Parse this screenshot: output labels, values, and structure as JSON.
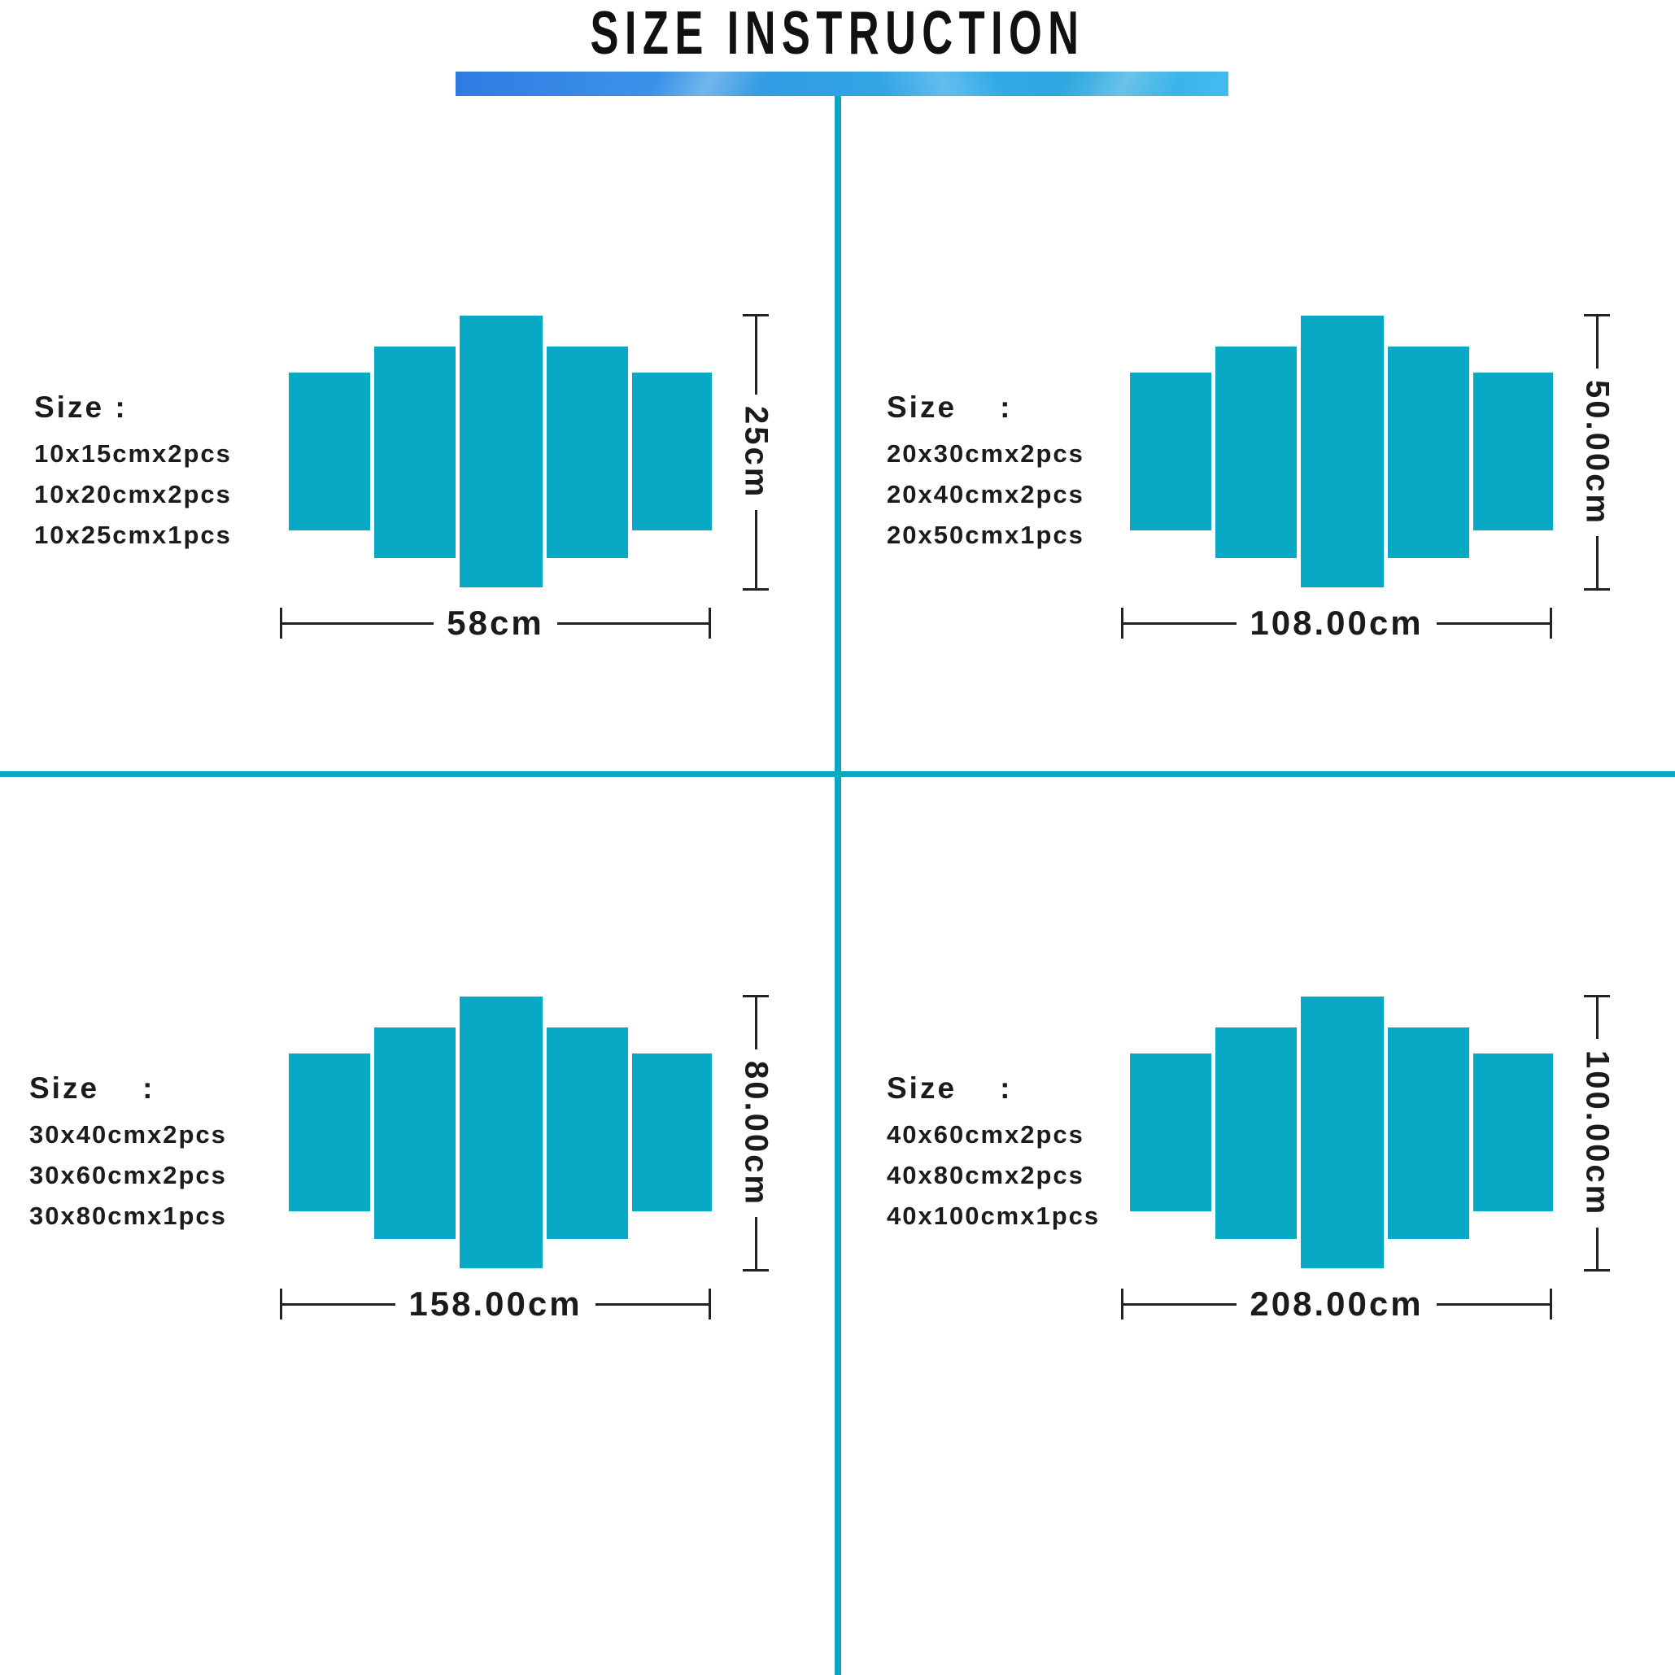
{
  "title": "SIZE INSTRUCTION",
  "colors": {
    "panel_teal": "#07a9c4",
    "divider_teal": "#0ea6c0",
    "accent_bar_blue_left": "#2e7ce2",
    "accent_bar_blue_right": "#43bdf0",
    "dimension_line": "#222222",
    "text": "#1b1b1b"
  },
  "quadrants": [
    {
      "id": "top-left",
      "size_label": "Size :",
      "size_lines": [
        "10x15cmx2pcs",
        "10x20cmx2pcs",
        "10x25cmx1pcs"
      ],
      "width_label": "58cm",
      "height_label": "25cm",
      "pieces": 5
    },
    {
      "id": "top-right",
      "size_label": "Size    :",
      "size_lines": [
        "20x30cmx2pcs",
        "20x40cmx2pcs",
        "20x50cmx1pcs"
      ],
      "width_label": "108.00cm",
      "height_label": "50.00cm",
      "pieces": 5
    },
    {
      "id": "bottom-left",
      "size_label": "Size    :",
      "size_lines": [
        "30x40cmx2pcs",
        "30x60cmx2pcs",
        "30x80cmx1pcs"
      ],
      "width_label": "158.00cm",
      "height_label": "80.00cm",
      "pieces": 5
    },
    {
      "id": "bottom-right",
      "size_label": "Size    :",
      "size_lines": [
        "40x60cmx2pcs",
        "40x80cmx2pcs",
        "40x100cmx1pcs"
      ],
      "width_label": "208.00cm",
      "height_label": "100.00cm",
      "pieces": 5
    }
  ]
}
